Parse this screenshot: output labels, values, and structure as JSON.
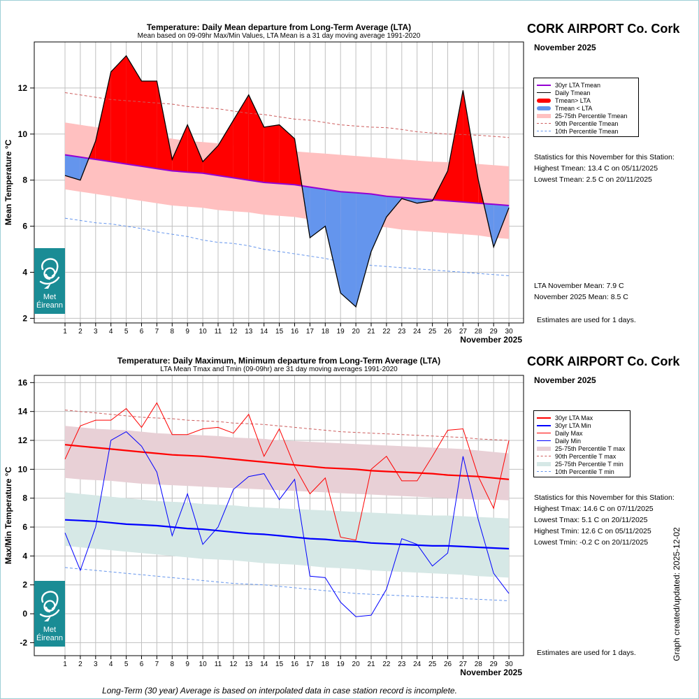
{
  "station": "CORK AIRPORT Co. Cork",
  "month": "November 2025",
  "footer": "Long-Term (30 year) Average is based on interpolated data in case station record is incomplete.",
  "created": "Graph created/updated:  2025-12-02",
  "logo": {
    "line1": "Met",
    "line2": "Éireann"
  },
  "colors": {
    "above": "#ff0000",
    "below": "#6495ed",
    "band": "#ffc0c0",
    "lta": "#9400d3",
    "p90": "#cd5c5c",
    "p10": "#6495ed",
    "tmax": "#ff0000",
    "tmin": "#0000ff",
    "bandmax": "#e8d0d6",
    "bandmin": "#d6e8e6"
  },
  "chart_data": [
    {
      "type": "area",
      "title": "Temperature: Daily Mean departure from Long-Term Average (LTA)",
      "subtitle": "Mean based on 09-09hr Max/Min Values, LTA Mean is a 31 day moving average 1991-2020",
      "ylabel": "Mean Temperature °C",
      "xlabel": "November 2025",
      "ylim": [
        1.8,
        14.0
      ],
      "yticks": [
        2,
        4,
        6,
        8,
        10,
        12
      ],
      "x": [
        1,
        2,
        3,
        4,
        5,
        6,
        7,
        8,
        9,
        10,
        11,
        12,
        13,
        14,
        15,
        16,
        17,
        18,
        19,
        20,
        21,
        22,
        23,
        24,
        25,
        26,
        27,
        28,
        29,
        30
      ],
      "grid": true,
      "series": [
        {
          "name": "30yr LTA Tmean",
          "values": [
            9.1,
            9.0,
            8.9,
            8.8,
            8.7,
            8.6,
            8.5,
            8.4,
            8.35,
            8.3,
            8.2,
            8.1,
            8.0,
            7.9,
            7.85,
            7.8,
            7.7,
            7.6,
            7.5,
            7.45,
            7.4,
            7.3,
            7.25,
            7.2,
            7.15,
            7.1,
            7.05,
            7.0,
            6.95,
            6.9
          ]
        },
        {
          "name": "Daily Tmean",
          "values": [
            8.2,
            8.0,
            9.7,
            12.7,
            13.4,
            12.3,
            12.3,
            8.9,
            10.4,
            8.8,
            9.5,
            10.6,
            11.7,
            10.3,
            10.4,
            9.8,
            5.5,
            6.0,
            3.1,
            2.5,
            4.9,
            6.4,
            7.2,
            7.0,
            7.1,
            8.4,
            11.9,
            8.0,
            5.1,
            6.8
          ]
        },
        {
          "name": "25-75th Percentile Tmean",
          "lower": [
            7.6,
            7.5,
            7.4,
            7.3,
            7.2,
            7.1,
            7.0,
            6.9,
            6.85,
            6.8,
            6.7,
            6.65,
            6.6,
            6.5,
            6.45,
            6.4,
            6.3,
            6.2,
            6.1,
            6.05,
            6.0,
            5.95,
            5.85,
            5.8,
            5.75,
            5.7,
            5.65,
            5.6,
            5.5,
            5.45
          ],
          "upper": [
            10.5,
            10.4,
            10.3,
            10.2,
            10.1,
            10.0,
            9.9,
            9.8,
            9.7,
            9.65,
            9.6,
            9.5,
            9.45,
            9.4,
            9.3,
            9.25,
            9.2,
            9.15,
            9.1,
            9.05,
            9.0,
            8.95,
            8.9,
            8.85,
            8.8,
            8.78,
            8.75,
            8.7,
            8.65,
            8.6
          ]
        },
        {
          "name": "90th Percentile Tmean",
          "values": [
            11.8,
            11.7,
            11.6,
            11.5,
            11.45,
            11.4,
            11.35,
            11.3,
            11.2,
            11.15,
            11.1,
            11.0,
            10.9,
            10.85,
            10.75,
            10.65,
            10.6,
            10.5,
            10.4,
            10.35,
            10.3,
            10.28,
            10.2,
            10.1,
            10.05,
            10.0,
            9.98,
            9.95,
            9.9,
            9.85
          ]
        },
        {
          "name": "10th Percentile Tmean",
          "values": [
            6.35,
            6.25,
            6.15,
            6.1,
            6.0,
            5.9,
            5.75,
            5.65,
            5.55,
            5.4,
            5.3,
            5.25,
            5.15,
            5.0,
            4.9,
            4.8,
            4.7,
            4.6,
            4.45,
            4.38,
            4.3,
            4.25,
            4.2,
            4.15,
            4.1,
            4.05,
            4.0,
            3.95,
            3.9,
            3.85
          ]
        }
      ],
      "legend": [
        "30yr LTA Tmean",
        "Daily Tmean",
        "Tmean> LTA",
        "Tmean < LTA",
        "25-75th Percentile Tmean",
        "90th Percentile Tmean",
        "10th Percentile Tmean"
      ],
      "stats": [
        "Statistics for this November for this Station:",
        "Highest Tmean: 13.4 C on 05/11/2025",
        "Lowest Tmean: 2.5 C on 20/11/2025"
      ],
      "means": [
        "LTA November Mean: 7.9 C",
        "November 2025 Mean: 8.5 C"
      ],
      "estimates": "Estimates are used for 1 days."
    },
    {
      "type": "line",
      "title": "Temperature: Daily Maximum, Minimum departure from Long-Term Average (LTA)",
      "subtitle": "LTA Mean Tmax and Tmin (09-09hr) are 31 day moving averages 1991-2020",
      "ylabel": "Max/Min Temperature °C",
      "xlabel": "November 2025",
      "ylim": [
        -2.9,
        16.5
      ],
      "yticks": [
        -2,
        0,
        2,
        4,
        6,
        8,
        10,
        12,
        14,
        16
      ],
      "x": [
        1,
        2,
        3,
        4,
        5,
        6,
        7,
        8,
        9,
        10,
        11,
        12,
        13,
        14,
        15,
        16,
        17,
        18,
        19,
        20,
        21,
        22,
        23,
        24,
        25,
        26,
        27,
        28,
        29,
        30
      ],
      "grid": true,
      "series": [
        {
          "name": "30yr LTA Max",
          "values": [
            11.7,
            11.6,
            11.5,
            11.4,
            11.3,
            11.2,
            11.1,
            11.0,
            10.95,
            10.9,
            10.8,
            10.7,
            10.6,
            10.5,
            10.4,
            10.3,
            10.2,
            10.1,
            10.05,
            10.0,
            9.9,
            9.85,
            9.8,
            9.75,
            9.7,
            9.6,
            9.55,
            9.5,
            9.4,
            9.3
          ]
        },
        {
          "name": "30yr LTA Min",
          "values": [
            6.5,
            6.45,
            6.4,
            6.3,
            6.2,
            6.15,
            6.1,
            6.0,
            5.9,
            5.85,
            5.75,
            5.65,
            5.55,
            5.5,
            5.4,
            5.3,
            5.2,
            5.15,
            5.05,
            5.0,
            4.9,
            4.85,
            4.8,
            4.75,
            4.7,
            4.7,
            4.65,
            4.6,
            4.55,
            4.5
          ]
        },
        {
          "name": "Daily Max",
          "values": [
            10.7,
            13.0,
            13.4,
            13.4,
            14.2,
            12.9,
            14.6,
            12.4,
            12.4,
            12.8,
            12.9,
            12.5,
            13.8,
            10.9,
            12.8,
            10.2,
            8.3,
            9.4,
            5.3,
            5.1,
            10.0,
            10.9,
            9.2,
            9.2,
            10.9,
            12.7,
            12.8,
            9.5,
            7.3,
            12.0
          ]
        },
        {
          "name": "Daily Min",
          "values": [
            5.6,
            3.0,
            6.0,
            12.0,
            12.6,
            11.6,
            9.8,
            5.4,
            8.3,
            4.8,
            6.0,
            8.6,
            9.5,
            9.7,
            7.9,
            9.3,
            2.6,
            2.5,
            0.8,
            -0.2,
            -0.1,
            1.7,
            5.2,
            4.8,
            3.3,
            4.2,
            10.9,
            6.5,
            2.8,
            1.4
          ]
        },
        {
          "name": "25-75th Percentile T max",
          "lower": [
            9.4,
            9.3,
            9.25,
            9.2,
            9.1,
            9.0,
            8.95,
            8.9,
            8.85,
            8.8,
            8.75,
            8.7,
            8.65,
            8.6,
            8.55,
            8.5,
            8.45,
            8.4,
            8.35,
            8.3,
            8.25,
            8.2,
            8.15,
            8.1,
            8.05,
            8.0,
            7.95,
            7.9,
            7.9,
            7.85
          ],
          "upper": [
            13.0,
            12.9,
            12.8,
            12.75,
            12.7,
            12.6,
            12.5,
            12.45,
            12.4,
            12.35,
            12.3,
            12.2,
            12.15,
            12.1,
            12.0,
            11.95,
            11.9,
            11.85,
            11.8,
            11.75,
            11.7,
            11.65,
            11.6,
            11.55,
            11.5,
            11.45,
            11.4,
            11.3,
            11.2,
            11.1
          ]
        },
        {
          "name": "90th Percentile T max",
          "values": [
            14.1,
            14.0,
            13.9,
            13.8,
            13.7,
            13.6,
            13.55,
            13.5,
            13.4,
            13.35,
            13.3,
            13.2,
            13.15,
            13.1,
            13.0,
            12.9,
            12.8,
            12.7,
            12.6,
            12.55,
            12.5,
            12.45,
            12.4,
            12.35,
            12.3,
            12.25,
            12.2,
            12.1,
            12.05,
            12.0
          ]
        },
        {
          "name": "25-75th Percentile T min",
          "lower": [
            4.7,
            4.6,
            4.5,
            4.4,
            4.3,
            4.2,
            4.1,
            4.0,
            3.9,
            3.8,
            3.75,
            3.7,
            3.6,
            3.5,
            3.45,
            3.4,
            3.3,
            3.2,
            3.15,
            3.1,
            3.0,
            2.95,
            2.9,
            2.85,
            2.8,
            2.75,
            2.7,
            2.6,
            2.55,
            2.5
          ],
          "upper": [
            8.4,
            8.3,
            8.2,
            8.1,
            8.0,
            7.9,
            7.8,
            7.75,
            7.7,
            7.6,
            7.55,
            7.5,
            7.4,
            7.35,
            7.3,
            7.25,
            7.2,
            7.15,
            7.1,
            7.05,
            7.0,
            6.95,
            6.9,
            6.85,
            6.8,
            6.8,
            6.75,
            6.7,
            6.65,
            6.6
          ]
        },
        {
          "name": "10th Percentile T min",
          "values": [
            3.2,
            3.1,
            3.0,
            2.9,
            2.8,
            2.7,
            2.6,
            2.5,
            2.4,
            2.3,
            2.2,
            2.1,
            2.05,
            2.0,
            1.9,
            1.8,
            1.7,
            1.6,
            1.5,
            1.4,
            1.35,
            1.3,
            1.25,
            1.2,
            1.15,
            1.1,
            1.05,
            1.0,
            0.95,
            0.9
          ]
        }
      ],
      "legend": [
        "30yr LTA Max",
        "30yr LTA Min",
        "Daily Max",
        "Daily Min",
        "25-75th Percentile T max",
        "90th Percentile T max",
        "25-75th Percentile T min",
        "10th Percentile T min"
      ],
      "stats": [
        "Statistics for this November for this Station:",
        "Highest Tmax: 14.6 C on 07/11/2025",
        "Lowest Tmax: 5.1 C on 20/11/2025",
        "Highest Tmin: 12.6 C on 05/11/2025",
        "Lowest Tmin: -0.2 C on 20/11/2025"
      ],
      "estimates": "Estimates are used for 1 days."
    }
  ]
}
